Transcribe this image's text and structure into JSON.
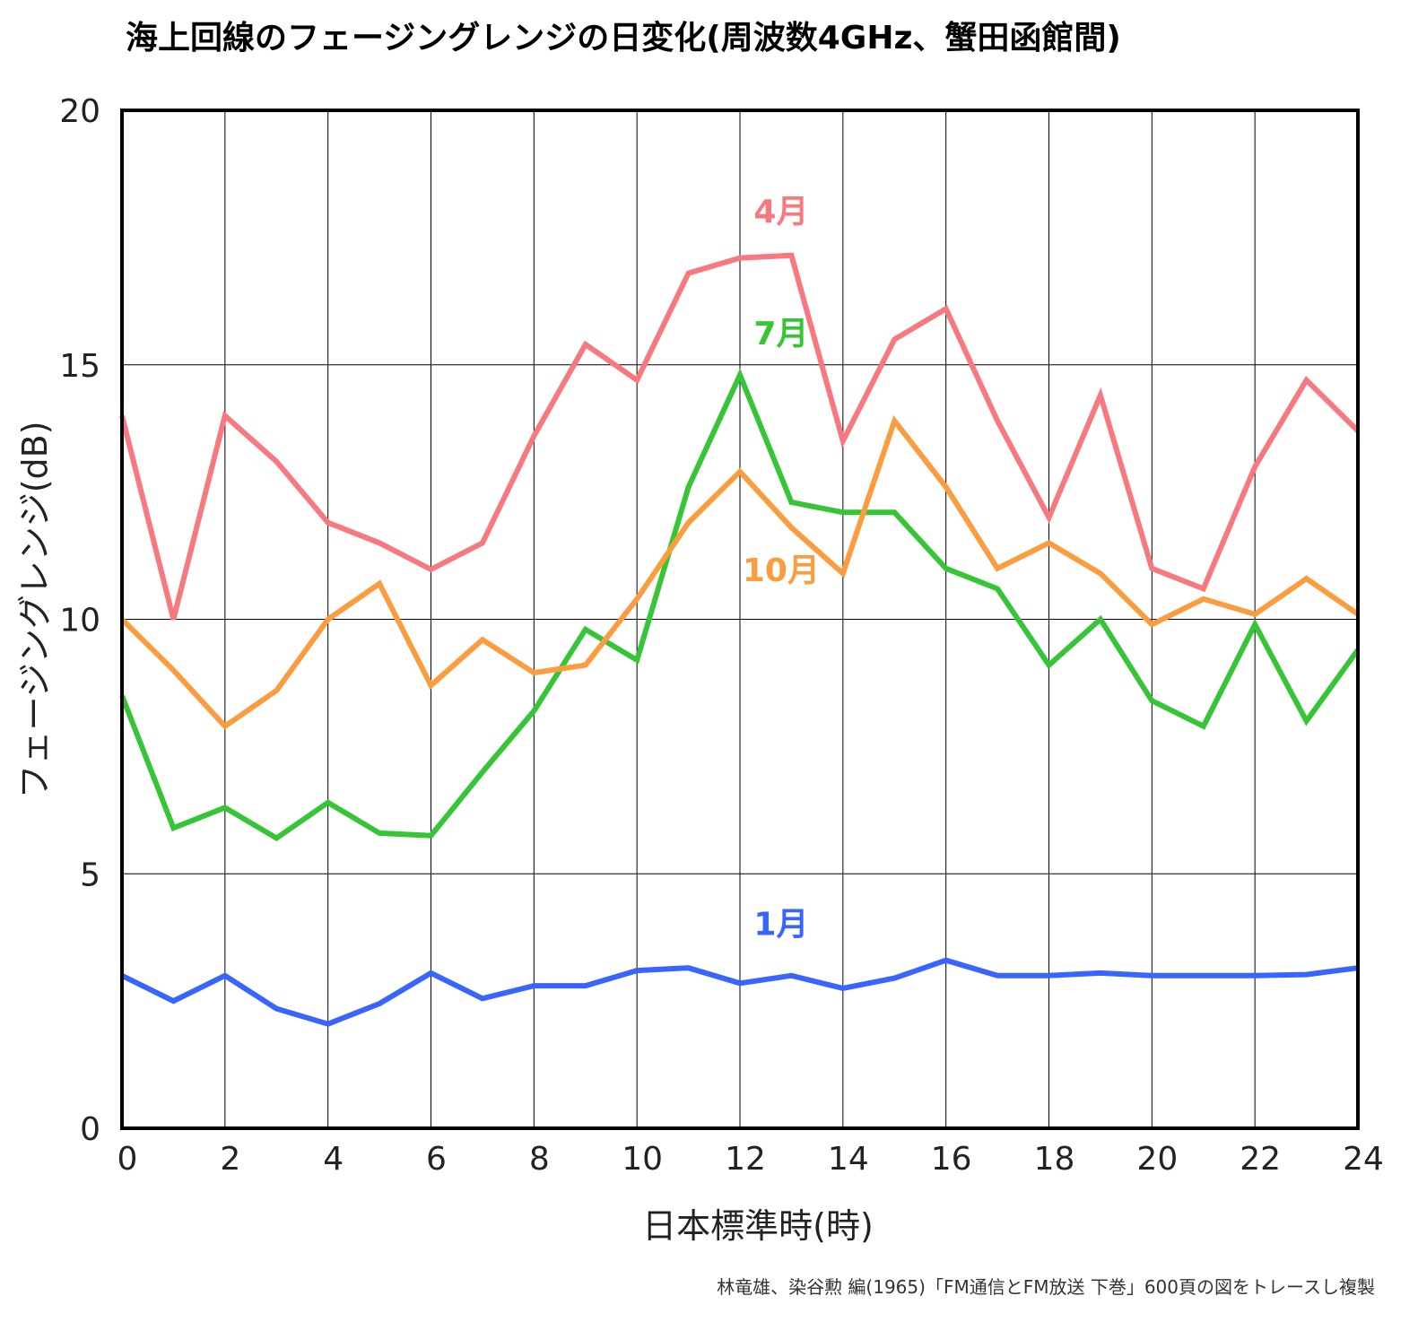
{
  "chart_data": {
    "type": "line",
    "title": "海上回線のフェージングレンジの日変化(周波数4GHz、蟹田函館間)",
    "xlabel": "日本標準時(時)",
    "ylabel": "フェージングレンジ(dB)",
    "xlim": [
      0,
      24
    ],
    "ylim": [
      0,
      20
    ],
    "xticks": [
      0,
      2,
      4,
      6,
      8,
      10,
      12,
      14,
      16,
      18,
      20,
      22,
      24
    ],
    "yticks": [
      0,
      5,
      10,
      15,
      20
    ],
    "grid": true,
    "x": [
      0,
      1,
      2,
      3,
      4,
      5,
      6,
      7,
      8,
      9,
      10,
      11,
      12,
      13,
      14,
      15,
      16,
      17,
      18,
      19,
      20,
      21,
      22,
      23,
      24
    ],
    "series": [
      {
        "name": "4月",
        "color": "#f7787f",
        "label_at": [
          12.8,
          17.8
        ],
        "values": [
          14.0,
          10.0,
          14.0,
          13.1,
          11.9,
          11.5,
          10.98,
          11.5,
          13.6,
          15.4,
          14.7,
          16.8,
          17.1,
          17.15,
          13.5,
          15.5,
          16.1,
          13.9,
          12.0,
          14.4,
          11.0,
          10.6,
          13.0,
          14.7,
          13.7
        ]
      },
      {
        "name": "7月",
        "color": "#36c536",
        "label_at": [
          12.8,
          15.4
        ],
        "values": [
          8.5,
          5.9,
          6.3,
          5.7,
          6.4,
          5.8,
          5.75,
          7.0,
          8.2,
          9.8,
          9.2,
          12.6,
          14.8,
          12.3,
          12.1,
          12.1,
          11.0,
          10.6,
          9.1,
          10.0,
          8.4,
          7.9,
          9.9,
          8.0,
          9.4
        ]
      },
      {
        "name": "10月",
        "color": "#fb9c3e",
        "label_at": [
          12.8,
          10.75
        ],
        "values": [
          10.0,
          9.0,
          7.9,
          8.6,
          10.0,
          10.7,
          8.7,
          9.6,
          8.95,
          9.1,
          10.4,
          11.9,
          12.9,
          11.8,
          10.9,
          13.9,
          12.6,
          11.0,
          11.5,
          10.9,
          9.9,
          10.4,
          10.1,
          10.8,
          10.1
        ]
      },
      {
        "name": "1月",
        "color": "#3864ff",
        "label_at": [
          12.8,
          3.8
        ],
        "values": [
          3.0,
          2.5,
          3.0,
          2.35,
          2.05,
          2.45,
          3.05,
          2.55,
          2.8,
          2.8,
          3.1,
          3.15,
          2.85,
          3.0,
          2.75,
          2.95,
          3.3,
          3.0,
          3.0,
          3.05,
          3.0,
          3.0,
          3.0,
          3.02,
          3.15
        ]
      }
    ]
  },
  "credit": "林竜雄、染谷勲 編(1965)「FM通信とFM放送 下巻」600頁の図をトレースし複製"
}
